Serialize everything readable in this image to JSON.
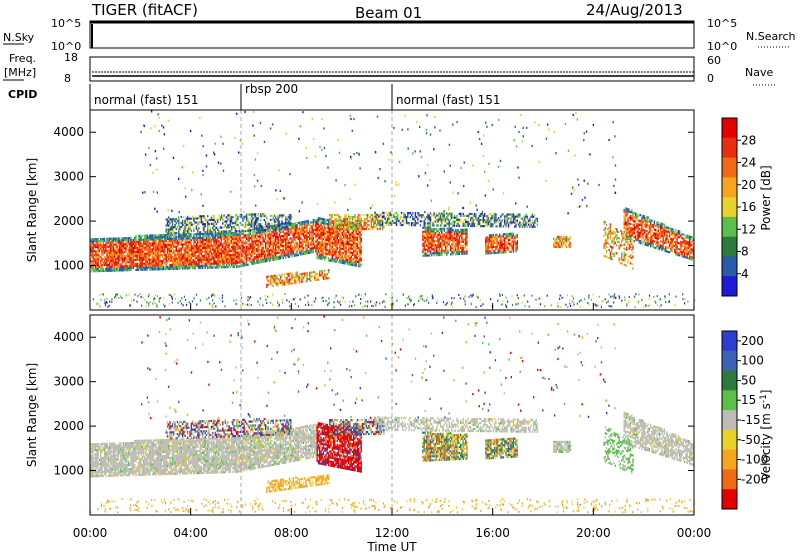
{
  "header": {
    "station": "TIGER (fitACF)",
    "beam": "Beam 01",
    "date": "24/Aug/2013"
  },
  "colors": {
    "gray": "#bdbdb5",
    "power_scale": [
      "#1c1cd8",
      "#2a5aa8",
      "#2e7a3c",
      "#5bbf4a",
      "#e8d12a",
      "#f7a51e",
      "#f26a14",
      "#ea2c10",
      "#e40000"
    ],
    "velocity_scale": [
      "#2a3fd0",
      "#3d63b8",
      "#2e7a3c",
      "#5bbf4a",
      "#bdbdb5",
      "#e8d12a",
      "#f7a51e",
      "#f26a14",
      "#e40000"
    ]
  },
  "top_panels": {
    "nsky": {
      "left_label": "N.Sky",
      "left_ticks": [
        "10^5",
        "10^0"
      ],
      "right_label": "N.Search",
      "right_ticks": [
        "10^5",
        "10^0"
      ]
    },
    "freq": {
      "left_label_1": "Freq.",
      "left_label_2": "[MHz]",
      "left_ticks": [
        "18",
        "8"
      ],
      "right_label": "Nave",
      "right_ticks": [
        "60",
        "0"
      ]
    },
    "cpid": {
      "label": "CPID",
      "segments": [
        {
          "text": "normal (fast) 151",
          "start_h": 0,
          "end_h": 6
        },
        {
          "text": "rbsp 200",
          "start_h": 6,
          "end_h": 12
        },
        {
          "text": "normal (fast) 151",
          "start_h": 12,
          "end_h": 24
        }
      ]
    }
  },
  "chart_data": [
    {
      "type": "heatmap",
      "title": "",
      "ylabel": "Slant Range [km]",
      "xlabel": "",
      "xlim": [
        0,
        24
      ],
      "ylim": [
        0,
        4500
      ],
      "y_ticks": [
        "1000",
        "2000",
        "3000",
        "4000"
      ],
      "colorbar_label": "Power [dB]",
      "colorbar_ticks": [
        "4",
        "8",
        "12",
        "16",
        "20",
        "24",
        "28"
      ],
      "colorbar_range": [
        0,
        32
      ],
      "grid": false
    },
    {
      "type": "heatmap",
      "title": "",
      "ylabel": "Slant Range [km]",
      "xlabel": "Time UT",
      "xlim": [
        0,
        24
      ],
      "ylim": [
        0,
        4500
      ],
      "x_ticks": [
        "00:00",
        "04:00",
        "08:00",
        "12:00",
        "16:00",
        "20:00",
        "00:00"
      ],
      "y_ticks": [
        "1000",
        "2000",
        "3000",
        "4000"
      ],
      "colorbar_label": "Velocity [m s^-1]",
      "colorbar_ticks": [
        "200",
        "100",
        "50",
        "15",
        "-15",
        "-50",
        "-100",
        "-200"
      ],
      "grid": false
    }
  ]
}
